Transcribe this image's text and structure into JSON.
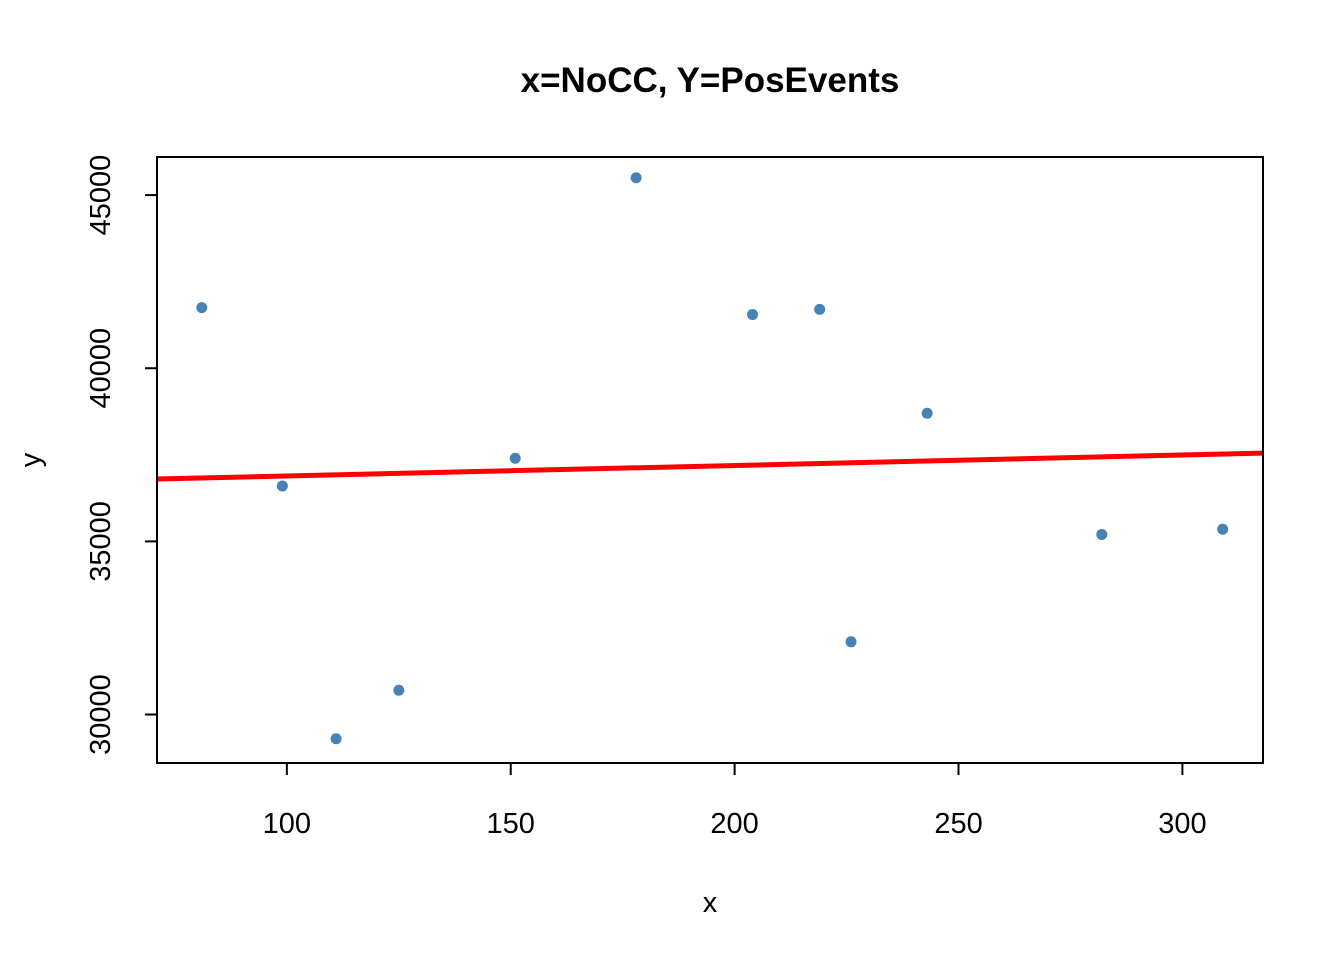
{
  "chart_data": {
    "type": "scatter",
    "title": "x=NoCC, Y=PosEvents",
    "xlabel": "x",
    "ylabel": "y",
    "xlim": [
      71,
      318
    ],
    "ylim": [
      28600,
      46100
    ],
    "x_ticks": [
      100,
      150,
      200,
      250,
      300
    ],
    "y_ticks": [
      30000,
      35000,
      40000,
      45000
    ],
    "grid": false,
    "legend": "none",
    "series": [
      {
        "x": [
          81,
          99,
          111,
          125,
          151,
          178,
          204,
          219,
          226,
          243,
          282,
          309
        ],
        "y": [
          41750,
          36600,
          29300,
          30700,
          37400,
          45500,
          41550,
          41700,
          32100,
          38700,
          35200,
          35350
        ],
        "color": "#4682B4"
      }
    ],
    "fit_line": {
      "x": [
        71,
        318
      ],
      "y": [
        36800,
        37550
      ],
      "color": "#FF0000"
    }
  }
}
